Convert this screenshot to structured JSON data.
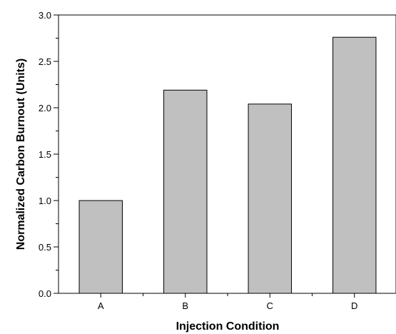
{
  "chart_data": {
    "type": "bar",
    "categories": [
      "A",
      "B",
      "C",
      "D"
    ],
    "values": [
      1.0,
      2.19,
      2.04,
      2.76
    ],
    "xlabel": "Injection Condition",
    "ylabel": "Normalized Carbon Burnout (Units)",
    "ylim": [
      0,
      3.0
    ],
    "yticks": [
      "0.0",
      "0.5",
      "1.0",
      "1.5",
      "2.0",
      "2.5",
      "3.0"
    ],
    "grid": false,
    "bar_color": "#c0c0c0",
    "bar_edge_color": "#000000"
  }
}
